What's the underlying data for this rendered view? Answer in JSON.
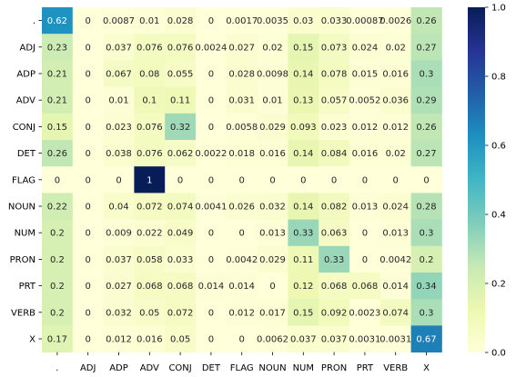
{
  "chart_data": {
    "type": "heatmap",
    "title": "",
    "xlabel": "",
    "ylabel": "",
    "x_labels": [
      ".",
      "ADJ",
      "ADP",
      "ADV",
      "CONJ",
      "DET",
      "FLAG",
      "NOUN",
      "NUM",
      "PRON",
      "PRT",
      "VERB",
      "X"
    ],
    "y_labels": [
      ".",
      "ADJ",
      "ADP",
      "ADV",
      "CONJ",
      "DET",
      "FLAG",
      "NOUN",
      "NUM",
      "PRON",
      "PRT",
      "VERB",
      "X"
    ],
    "values": [
      [
        0.62,
        0,
        0.0087,
        0.01,
        0.028,
        0,
        0.0017,
        0.0035,
        0.03,
        0.033,
        0.00087,
        0.0026,
        0.26
      ],
      [
        0.23,
        0,
        0.037,
        0.076,
        0.076,
        0.0024,
        0.027,
        0.02,
        0.15,
        0.073,
        0.024,
        0.02,
        0.27
      ],
      [
        0.21,
        0,
        0.067,
        0.08,
        0.055,
        0,
        0.028,
        0.0098,
        0.14,
        0.078,
        0.015,
        0.016,
        0.3
      ],
      [
        0.21,
        0,
        0.01,
        0.1,
        0.11,
        0,
        0.031,
        0.01,
        0.13,
        0.057,
        0.0052,
        0.036,
        0.29
      ],
      [
        0.15,
        0,
        0.023,
        0.076,
        0.32,
        0,
        0.0058,
        0.029,
        0.093,
        0.023,
        0.012,
        0.012,
        0.26
      ],
      [
        0.26,
        0,
        0.038,
        0.076,
        0.062,
        0.0022,
        0.018,
        0.016,
        0.14,
        0.084,
        0.016,
        0.02,
        0.27
      ],
      [
        0,
        0,
        0,
        1,
        0,
        0,
        0,
        0,
        0,
        0,
        0,
        0,
        0
      ],
      [
        0.22,
        0,
        0.04,
        0.072,
        0.074,
        0.0041,
        0.026,
        0.032,
        0.14,
        0.082,
        0.013,
        0.024,
        0.28
      ],
      [
        0.2,
        0,
        0.009,
        0.022,
        0.049,
        0,
        0,
        0.013,
        0.33,
        0.063,
        0,
        0.013,
        0.3
      ],
      [
        0.2,
        0,
        0.037,
        0.058,
        0.033,
        0,
        0.0042,
        0.029,
        0.11,
        0.33,
        0,
        0.0042,
        0.2
      ],
      [
        0.2,
        0,
        0.027,
        0.068,
        0.068,
        0.014,
        0.014,
        0,
        0.12,
        0.068,
        0.068,
        0.014,
        0.34
      ],
      [
        0.2,
        0,
        0.032,
        0.05,
        0.072,
        0,
        0.012,
        0.017,
        0.15,
        0.092,
        0.0023,
        0.074,
        0.3
      ],
      [
        0.17,
        0,
        0.012,
        0.016,
        0.05,
        0,
        0,
        0.0062,
        0.037,
        0.037,
        0.0031,
        0.0031,
        0.67
      ]
    ],
    "value_labels": [
      [
        "0.62",
        "0",
        "0.0087",
        "0.01",
        "0.028",
        "0",
        "0.0017",
        "0.0035",
        "0.03",
        "0.033",
        "0.00087",
        "0.0026",
        "0.26"
      ],
      [
        "0.23",
        "0",
        "0.037",
        "0.076",
        "0.076",
        "0.0024",
        "0.027",
        "0.02",
        "0.15",
        "0.073",
        "0.024",
        "0.02",
        "0.27"
      ],
      [
        "0.21",
        "0",
        "0.067",
        "0.08",
        "0.055",
        "0",
        "0.028",
        "0.0098",
        "0.14",
        "0.078",
        "0.015",
        "0.016",
        "0.3"
      ],
      [
        "0.21",
        "0",
        "0.01",
        "0.1",
        "0.11",
        "0",
        "0.031",
        "0.01",
        "0.13",
        "0.057",
        "0.0052",
        "0.036",
        "0.29"
      ],
      [
        "0.15",
        "0",
        "0.023",
        "0.076",
        "0.32",
        "0",
        "0.0058",
        "0.029",
        "0.093",
        "0.023",
        "0.012",
        "0.012",
        "0.26"
      ],
      [
        "0.26",
        "0",
        "0.038",
        "0.076",
        "0.062",
        "0.0022",
        "0.018",
        "0.016",
        "0.14",
        "0.084",
        "0.016",
        "0.02",
        "0.27"
      ],
      [
        "0",
        "0",
        "0",
        "1",
        "0",
        "0",
        "0",
        "0",
        "0",
        "0",
        "0",
        "0",
        "0"
      ],
      [
        "0.22",
        "0",
        "0.04",
        "0.072",
        "0.074",
        "0.0041",
        "0.026",
        "0.032",
        "0.14",
        "0.082",
        "0.013",
        "0.024",
        "0.28"
      ],
      [
        "0.2",
        "0",
        "0.009",
        "0.022",
        "0.049",
        "0",
        "0",
        "0.013",
        "0.33",
        "0.063",
        "0",
        "0.013",
        "0.3"
      ],
      [
        "0.2",
        "0",
        "0.037",
        "0.058",
        "0.033",
        "0",
        "0.0042",
        "0.029",
        "0.11",
        "0.33",
        "0",
        "0.0042",
        "0.2"
      ],
      [
        "0.2",
        "0",
        "0.027",
        "0.068",
        "0.068",
        "0.014",
        "0.014",
        "0",
        "0.12",
        "0.068",
        "0.068",
        "0.014",
        "0.34"
      ],
      [
        "0.2",
        "0",
        "0.032",
        "0.05",
        "0.072",
        "0",
        "0.012",
        "0.017",
        "0.15",
        "0.092",
        "0.0023",
        "0.074",
        "0.3"
      ],
      [
        "0.17",
        "0",
        "0.012",
        "0.016",
        "0.05",
        "0",
        "0",
        "0.0062",
        "0.037",
        "0.037",
        "0.0031",
        "0.0031",
        "0.67"
      ]
    ],
    "colormap": "YlGnBu",
    "colormap_stops": [
      "#ffffd9",
      "#edf8b1",
      "#c7e9b4",
      "#7fcdbb",
      "#41b6c4",
      "#1d91c0",
      "#225ea8",
      "#253494",
      "#081d58"
    ],
    "vmin": 0,
    "vmax": 1,
    "colorbar_ticks": [
      "0.0",
      "0.2",
      "0.4",
      "0.6",
      "0.8",
      "1.0"
    ],
    "colorbar_tick_values": [
      0,
      0.2,
      0.4,
      0.6,
      0.8,
      1.0
    ],
    "legend_position": "right",
    "grid": false
  }
}
